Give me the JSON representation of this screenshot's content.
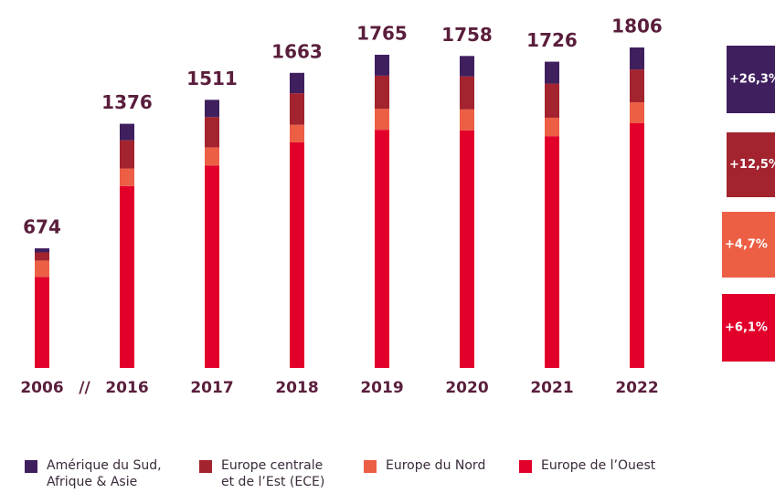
{
  "chart_data": {
    "type": "stacked_bar",
    "categories": [
      "2006",
      "2016",
      "2017",
      "2018",
      "2019",
      "2020",
      "2021",
      "2022"
    ],
    "axis_break": "//",
    "totals": [
      674,
      1376,
      1511,
      1663,
      1765,
      1758,
      1726,
      1806
    ],
    "series": [
      {
        "name": "Amérique du Sud,\nAfrique & Asie",
        "color": "#3f1f5e",
        "values": [
          23,
          93,
          97,
          115,
          118,
          115,
          124,
          124
        ]
      },
      {
        "name": "Europe centrale\net de l’Est (ECE)",
        "color": "#a3232e",
        "values": [
          46,
          159,
          171,
          178,
          186,
          186,
          192,
          185
        ]
      },
      {
        "name": "Europe du Nord",
        "color": "#ec5f45",
        "values": [
          92,
          99,
          102,
          99,
          119,
          119,
          104,
          118
        ]
      },
      {
        "name": "Europe de l’Ouest",
        "color": "#e2002b",
        "values": [
          513,
          1025,
          1141,
          1271,
          1342,
          1338,
          1306,
          1379
        ]
      }
    ],
    "changes": [
      "+26,3%",
      "+12,5%",
      "+4,7%",
      "+6,1%"
    ]
  }
}
